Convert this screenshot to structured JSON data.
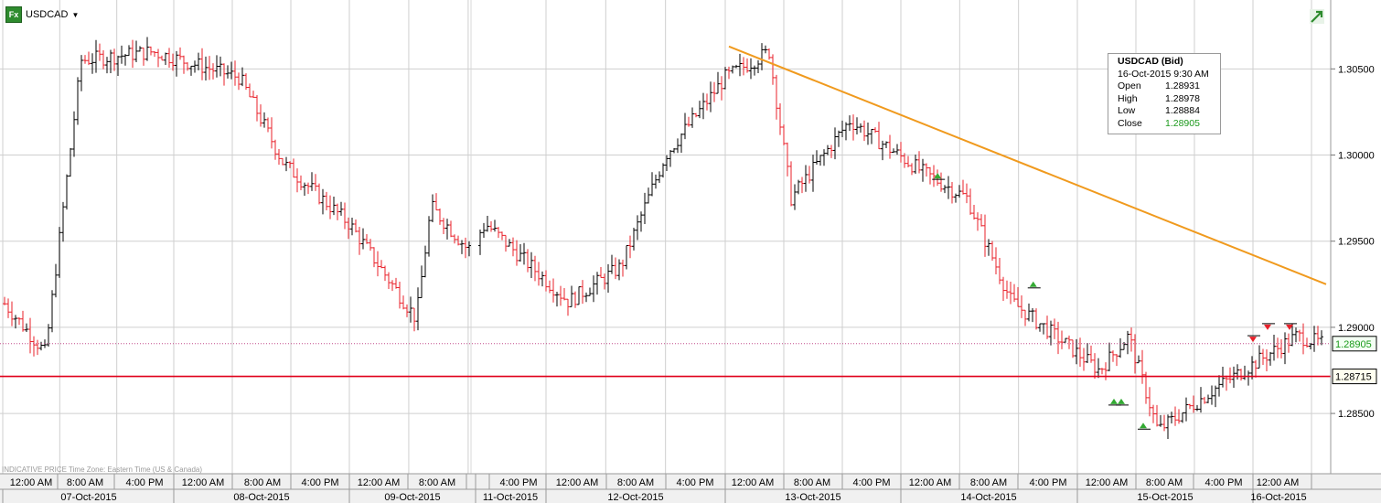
{
  "toolbar": {
    "symbol_icon": "fx-icon",
    "symbol_icon_text": "Fx",
    "symbol": "USDCAD",
    "dropdown_icon": "caret-down-icon"
  },
  "tooltip": {
    "title": "USDCAD (Bid)",
    "datetime": "16-Oct-2015 9:30 AM",
    "rows": [
      {
        "label": "Open",
        "value": "1.28931"
      },
      {
        "label": "High",
        "value": "1.28978"
      },
      {
        "label": "Low",
        "value": "1.28884"
      },
      {
        "label": "Close",
        "value": "1.28905"
      }
    ]
  },
  "footer_note": "INDICATIVE PRICE   Time Zone: Eastern Time (US & Canada)",
  "colors": {
    "up": "#000000",
    "down": "#e8202a",
    "trendline": "#f09a1e",
    "support": "#e0001a",
    "grid": "#cfcfcf",
    "green_marker": "#33aa33",
    "red_marker": "#e8202a",
    "axis_bg": "#f0f0f0"
  },
  "chart_data": {
    "type": "ohlc",
    "symbol": "USDCAD",
    "y_ticks": [
      "1.30500",
      "1.30000",
      "1.29500",
      "1.29000",
      "1.28500"
    ],
    "y_range": [
      1.2815,
      1.309
    ],
    "current_price_label": "1.28905",
    "current_price": 1.28905,
    "support_label": "1.28715",
    "support_level": 1.28715,
    "time_labels": [
      "12:00 AM",
      "8:00 AM",
      "4:00 PM",
      "12:00 AM",
      "8:00 AM",
      "4:00 PM",
      "12:00 AM",
      "8:00 AM",
      "4:00 PM",
      "12:00 AM",
      "8:00 AM",
      "4:00 PM",
      "12:00 AM",
      "8:00 AM",
      "4:00 PM",
      "12:00 AM",
      "8:00 AM",
      "4:00 PM",
      "12:00 AM",
      "8:00 AM",
      "4:00 PM",
      "12:00 AM"
    ],
    "date_labels": [
      "07-Oct-2015",
      "08-Oct-2015",
      "09-Oct-2015",
      "11-Oct-2015",
      "12-Oct-2015",
      "13-Oct-2015",
      "14-Oct-2015",
      "15-Oct-2015",
      "16-Oct-2015"
    ],
    "trendline": {
      "start": [
        "13-Oct-2015 12:30 AM",
        1.3063
      ],
      "end": [
        "16-Oct-2015 10:00 AM",
        1.2925
      ]
    },
    "path_keypoints": [
      [
        "07-Oct-2015 12:00 AM",
        1.2915
      ],
      [
        "07-Oct-2015 6:00 AM",
        1.2885
      ],
      [
        "07-Oct-2015 11:00 AM",
        1.3055
      ],
      [
        "07-Oct-2015 9:00 PM",
        1.306
      ],
      [
        "08-Oct-2015 9:00 AM",
        1.3045
      ],
      [
        "08-Oct-2015 3:00 PM",
        1.2995
      ],
      [
        "09-Oct-2015 12:00 AM",
        1.296
      ],
      [
        "09-Oct-2015 9:00 AM",
        1.2905
      ],
      [
        "09-Oct-2015 11:00 AM",
        1.297
      ],
      [
        "09-Oct-2015 4:00 PM",
        1.2945
      ],
      [
        "11-Oct-2015 6:00 PM",
        1.296
      ],
      [
        "12-Oct-2015 3:00 AM",
        1.2915
      ],
      [
        "12-Oct-2015 10:00 AM",
        1.2935
      ],
      [
        "12-Oct-2015 4:00 PM",
        1.3
      ],
      [
        "13-Oct-2015 12:00 AM",
        1.3045
      ],
      [
        "13-Oct-2015 6:00 AM",
        1.306
      ],
      [
        "13-Oct-2015 9:00 AM",
        1.2975
      ],
      [
        "13-Oct-2015 5:00 PM",
        1.302
      ],
      [
        "14-Oct-2015 3:00 AM",
        1.299
      ],
      [
        "14-Oct-2015 9:00 AM",
        1.2975
      ],
      [
        "14-Oct-2015 3:00 PM",
        1.2915
      ],
      [
        "15-Oct-2015 3:00 AM",
        1.2875
      ],
      [
        "15-Oct-2015 7:00 AM",
        1.2895
      ],
      [
        "15-Oct-2015 11:00 AM",
        1.284
      ],
      [
        "15-Oct-2015 7:00 PM",
        1.2865
      ],
      [
        "16-Oct-2015 6:00 AM",
        1.2895
      ],
      [
        "16-Oct-2015 9:30 AM",
        1.28905
      ]
    ],
    "markers": [
      {
        "type": "green-up",
        "time": "14-Oct-2015 5:00 AM",
        "price": 1.2988
      },
      {
        "type": "green-up",
        "time": "14-Oct-2015 6:00 PM",
        "price": 1.2925
      },
      {
        "type": "green-up",
        "time": "15-Oct-2015 5:00 AM",
        "price": 1.2857
      },
      {
        "type": "green-up",
        "time": "15-Oct-2015 6:00 AM",
        "price": 1.2857
      },
      {
        "type": "green-up",
        "time": "15-Oct-2015 9:00 AM",
        "price": 1.2843
      },
      {
        "type": "red-down",
        "time": "16-Oct-2015 12:00 AM",
        "price": 1.2893
      },
      {
        "type": "red-down",
        "time": "16-Oct-2015 2:00 AM",
        "price": 1.29
      },
      {
        "type": "red-down",
        "time": "16-Oct-2015 5:00 AM",
        "price": 1.29
      }
    ]
  }
}
